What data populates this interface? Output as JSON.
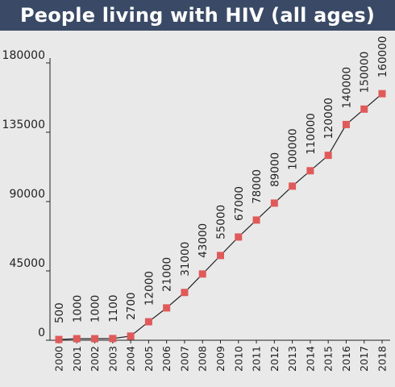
{
  "chart_data": {
    "type": "line",
    "title": "People living with HIV (all ages)",
    "x": [
      "2000",
      "2001",
      "2002",
      "2003",
      "2004",
      "2005",
      "2006",
      "2007",
      "2008",
      "2009",
      "2010",
      "2011",
      "2012",
      "2013",
      "2014",
      "2015",
      "2016",
      "2017",
      "2018"
    ],
    "series": [
      {
        "values": [
          500,
          1000,
          1000,
          1100,
          2700,
          12000,
          21000,
          31000,
          43000,
          55000,
          67000,
          78000,
          89000,
          100000,
          110000,
          120000,
          140000,
          150000,
          160000
        ],
        "labels": [
          "500",
          "1000",
          "1000",
          "1100",
          "2700",
          "12000",
          "21000",
          "31000",
          "43000",
          "55000",
          "67000",
          "78000",
          "89000",
          "100000",
          "110000",
          "120000",
          "140000",
          "150000",
          "160000"
        ]
      }
    ],
    "yticks": [
      "0",
      "45000",
      "90000",
      "135000",
      "180000"
    ],
    "ylim": [
      0,
      180000
    ],
    "xlabel": "",
    "ylabel": "",
    "grid": false,
    "line_color": "#222222",
    "marker_color": "#e05a5a"
  }
}
